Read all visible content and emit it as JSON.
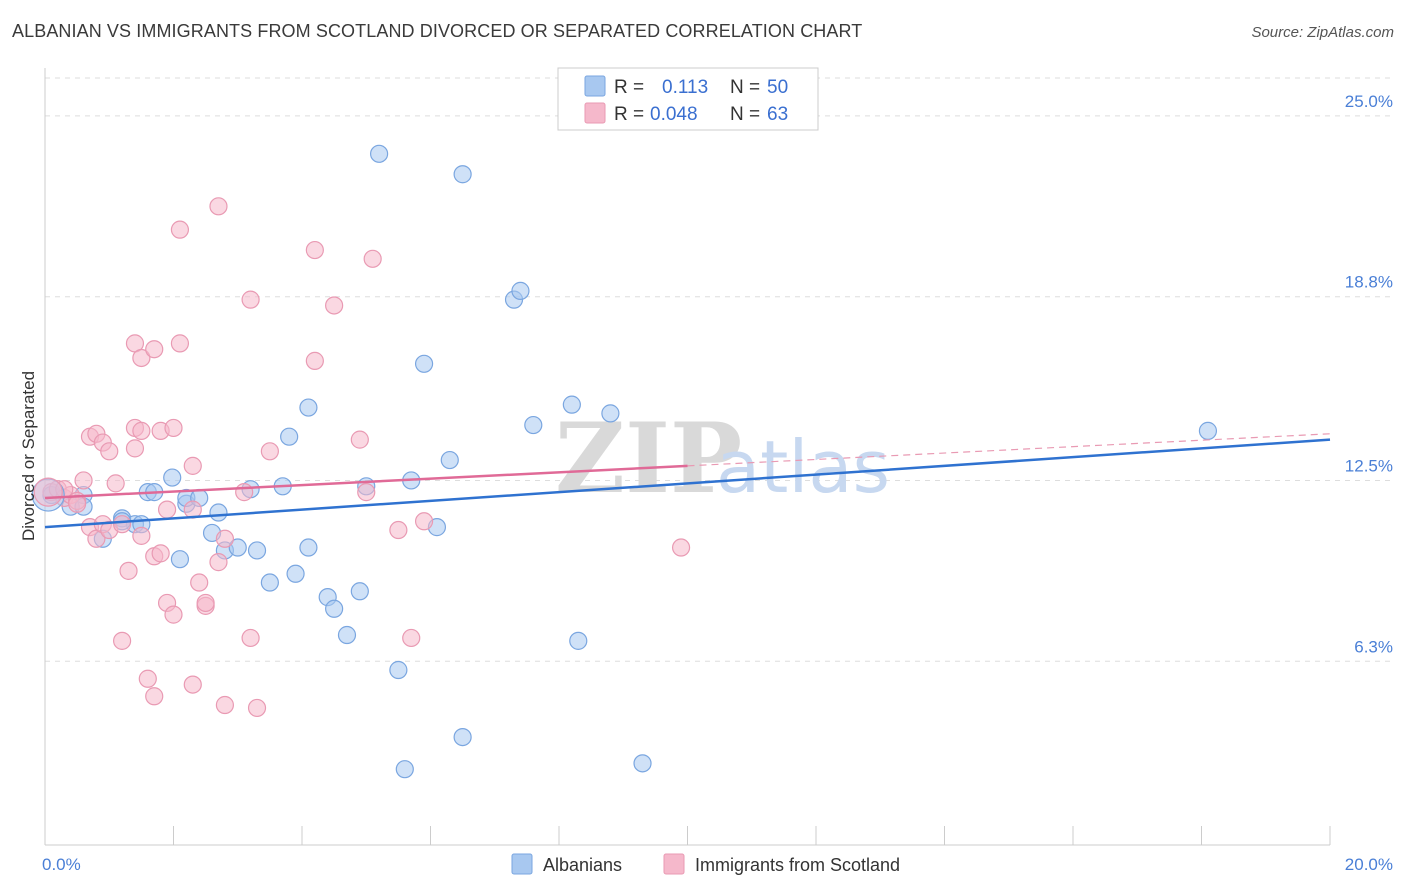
{
  "title": "ALBANIAN VS IMMIGRANTS FROM SCOTLAND DIVORCED OR SEPARATED CORRELATION CHART",
  "source": "Source: ZipAtlas.com",
  "watermark": {
    "zip": "ZIP",
    "atlas": "atlas"
  },
  "legend_top": {
    "rows": [
      {
        "r_label": "R =",
        "r_value": "0.113",
        "n_label": "N =",
        "n_value": "50",
        "color": "#a8c8f0"
      },
      {
        "r_label": "R =",
        "r_value": "0.048",
        "n_label": "N =",
        "n_value": "63",
        "color": "#f5b8cb"
      }
    ]
  },
  "legend_bottom": {
    "items": [
      {
        "label": "Albanians",
        "color": "#a8c8f0"
      },
      {
        "label": "Immigrants from Scotland",
        "color": "#f5b8cb"
      }
    ]
  },
  "chart_data": {
    "type": "scatter",
    "title": "ALBANIAN VS IMMIGRANTS FROM SCOTLAND DIVORCED OR SEPARATED CORRELATION CHART",
    "xlabel": "",
    "ylabel": "Divorced or Separated",
    "xlim": [
      0,
      20
    ],
    "ylim": [
      0,
      26.3
    ],
    "x_tick_labels": [
      "0.0%",
      "20.0%"
    ],
    "y_ticks": [
      6.3,
      12.5,
      18.8,
      25.0
    ],
    "y_tick_labels": [
      "6.3%",
      "12.5%",
      "18.8%",
      "25.0%"
    ],
    "grid": "horizontal dashed",
    "legend_position": "top-center",
    "series": [
      {
        "name": "Albanians",
        "color": "#4a86d8",
        "fill": "#a8c8f0",
        "trend": {
          "x": [
            0,
            20
          ],
          "y": [
            10.9,
            13.9
          ]
        },
        "points": [
          [
            0.1,
            12.0
          ],
          [
            0.4,
            11.6
          ],
          [
            0.6,
            12.0
          ],
          [
            0.9,
            10.5
          ],
          [
            1.2,
            11.2
          ],
          [
            1.4,
            11.0
          ],
          [
            1.6,
            12.1
          ],
          [
            1.7,
            12.1
          ],
          [
            1.98,
            12.6
          ],
          [
            2.2,
            11.7
          ],
          [
            2.2,
            11.9
          ],
          [
            2.1,
            9.8
          ],
          [
            2.6,
            10.7
          ],
          [
            2.7,
            11.4
          ],
          [
            2.8,
            10.1
          ],
          [
            3.0,
            10.2
          ],
          [
            3.2,
            12.2
          ],
          [
            3.3,
            10.1
          ],
          [
            3.5,
            9.0
          ],
          [
            3.7,
            12.3
          ],
          [
            3.8,
            14.0
          ],
          [
            3.9,
            9.3
          ],
          [
            4.1,
            10.2
          ],
          [
            4.1,
            15.0
          ],
          [
            4.4,
            8.5
          ],
          [
            4.5,
            8.1
          ],
          [
            4.7,
            7.2
          ],
          [
            4.9,
            8.7
          ],
          [
            5.0,
            12.3
          ],
          [
            5.2,
            23.7
          ],
          [
            5.5,
            6.0
          ],
          [
            5.6,
            2.6
          ],
          [
            5.7,
            12.5
          ],
          [
            5.9,
            16.5
          ],
          [
            6.1,
            10.9
          ],
          [
            6.3,
            13.2
          ],
          [
            6.5,
            3.7
          ],
          [
            6.5,
            23.0
          ],
          [
            7.3,
            18.7
          ],
          [
            7.4,
            19.0
          ],
          [
            7.6,
            14.4
          ],
          [
            8.2,
            15.1
          ],
          [
            8.3,
            7.0
          ],
          [
            8.8,
            14.8
          ],
          [
            9.3,
            2.8
          ],
          [
            18.1,
            14.2
          ],
          [
            1.2,
            11.1
          ],
          [
            0.6,
            11.6
          ],
          [
            1.5,
            11.0
          ],
          [
            2.4,
            11.9
          ]
        ]
      },
      {
        "name": "Immigrants from Scotland",
        "color": "#e06a97",
        "fill": "#f5b8cb",
        "trend": {
          "x": [
            0,
            10
          ],
          "y": [
            11.9,
            13.0
          ]
        },
        "points": [
          [
            0.1,
            12.1
          ],
          [
            0.2,
            12.2
          ],
          [
            0.3,
            11.9
          ],
          [
            0.4,
            12.0
          ],
          [
            0.5,
            11.8
          ],
          [
            0.6,
            12.5
          ],
          [
            0.5,
            11.7
          ],
          [
            0.7,
            14.0
          ],
          [
            0.7,
            10.9
          ],
          [
            0.8,
            14.1
          ],
          [
            0.8,
            10.5
          ],
          [
            0.9,
            13.8
          ],
          [
            0.9,
            11.0
          ],
          [
            1.0,
            13.5
          ],
          [
            1.0,
            10.8
          ],
          [
            1.1,
            12.4
          ],
          [
            1.2,
            11.0
          ],
          [
            1.2,
            7.0
          ],
          [
            1.3,
            9.4
          ],
          [
            1.4,
            13.6
          ],
          [
            1.4,
            14.3
          ],
          [
            1.4,
            17.2
          ],
          [
            1.5,
            14.2
          ],
          [
            1.5,
            10.6
          ],
          [
            1.5,
            16.7
          ],
          [
            1.6,
            5.7
          ],
          [
            1.7,
            5.1
          ],
          [
            1.7,
            9.9
          ],
          [
            1.7,
            17.0
          ],
          [
            1.8,
            10.0
          ],
          [
            1.8,
            14.2
          ],
          [
            1.9,
            11.5
          ],
          [
            1.9,
            8.3
          ],
          [
            2.0,
            14.3
          ],
          [
            2.0,
            7.9
          ],
          [
            2.1,
            21.1
          ],
          [
            2.1,
            17.2
          ],
          [
            2.3,
            13.0
          ],
          [
            2.3,
            11.5
          ],
          [
            2.3,
            5.5
          ],
          [
            2.4,
            9.0
          ],
          [
            2.5,
            8.2
          ],
          [
            2.5,
            8.3
          ],
          [
            2.7,
            9.7
          ],
          [
            2.7,
            21.9
          ],
          [
            2.8,
            4.8
          ],
          [
            2.8,
            10.5
          ],
          [
            3.1,
            12.1
          ],
          [
            3.2,
            18.7
          ],
          [
            3.2,
            7.1
          ],
          [
            3.3,
            4.7
          ],
          [
            3.5,
            13.5
          ],
          [
            4.2,
            20.4
          ],
          [
            4.2,
            16.6
          ],
          [
            4.5,
            18.5
          ],
          [
            4.9,
            13.9
          ],
          [
            5.0,
            12.1
          ],
          [
            5.1,
            20.1
          ],
          [
            5.5,
            10.8
          ],
          [
            5.7,
            7.1
          ],
          [
            5.9,
            11.1
          ],
          [
            9.9,
            10.2
          ],
          [
            0.3,
            12.2
          ]
        ]
      }
    ]
  }
}
